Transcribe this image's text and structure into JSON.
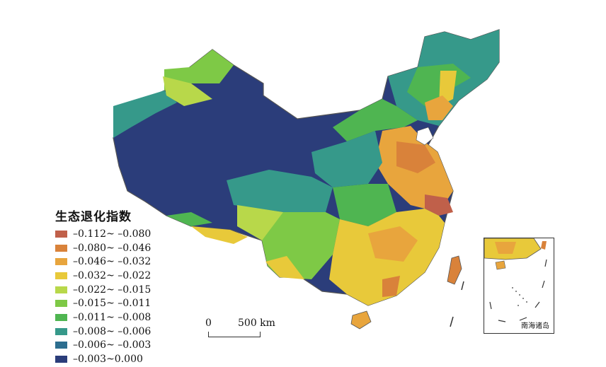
{
  "legend": {
    "title": "生态退化指数",
    "classes": [
      {
        "label": "–0.112~ –0.080",
        "color": "#c0604a"
      },
      {
        "label": "–0.080~ –0.046",
        "color": "#d9823a"
      },
      {
        "label": "–0.046~ –0.032",
        "color": "#e8a53d"
      },
      {
        "label": "–0.032~ –0.022",
        "color": "#e8c93a"
      },
      {
        "label": "–0.022~ –0.015",
        "color": "#b8d84a"
      },
      {
        "label": "–0.015~ –0.011",
        "color": "#7ec946"
      },
      {
        "label": "–0.011~ –0.008",
        "color": "#4fb551"
      },
      {
        "label": "–0.008~ –0.006",
        "color": "#36998a"
      },
      {
        "label": "–0.006~ –0.003",
        "color": "#2d6e8f"
      },
      {
        "label": "–0.003~0.000",
        "color": "#2b3d7a"
      }
    ]
  },
  "scalebar": {
    "zero": "0",
    "distance": "500 km"
  },
  "inset": {
    "label": "南海诸岛"
  }
}
